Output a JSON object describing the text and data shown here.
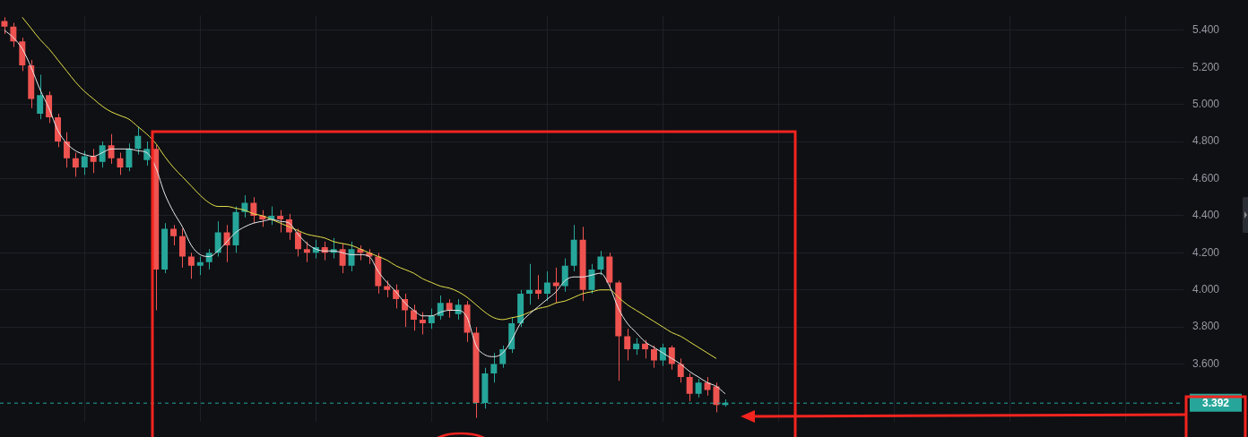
{
  "chart_data": {
    "type": "candlestick",
    "categories": [
      null,
      null,
      null,
      null,
      null,
      null,
      null,
      null,
      null,
      null,
      null,
      null,
      null,
      null,
      null,
      null,
      null,
      null,
      null,
      null,
      null,
      null,
      null,
      null,
      null,
      null,
      null,
      null,
      null,
      null,
      null,
      null,
      null,
      null,
      null,
      null,
      null,
      null,
      null,
      null,
      null,
      null,
      null,
      null,
      null,
      null,
      null,
      null,
      null,
      null,
      null,
      null,
      null,
      null,
      null,
      null,
      null,
      null,
      null,
      null,
      null,
      null,
      null,
      null,
      null,
      null,
      null,
      null,
      null,
      null,
      null,
      null,
      null,
      null,
      null,
      null,
      null,
      null,
      null,
      null,
      null,
      null,
      null,
      null,
      null,
      null,
      null,
      null,
      null,
      null,
      null,
      null,
      null,
      null,
      null,
      null,
      null,
      null,
      null,
      null,
      null,
      null,
      null,
      null,
      null,
      null,
      null,
      null,
      null,
      null,
      null,
      null,
      null,
      null,
      null,
      null,
      null,
      null,
      null,
      null,
      null,
      null,
      null,
      null,
      null,
      null,
      null,
      null,
      null,
      null,
      null,
      null,
      null
    ],
    "ohlc": [
      [
        5.45,
        5.47,
        5.38,
        5.42
      ],
      [
        5.42,
        5.44,
        5.31,
        5.34
      ],
      [
        5.34,
        5.36,
        5.18,
        5.21
      ],
      [
        5.21,
        5.24,
        4.98,
        5.03
      ],
      [
        4.95,
        5.16,
        4.92,
        5.05
      ],
      [
        5.05,
        5.07,
        4.9,
        4.93
      ],
      [
        4.93,
        4.95,
        4.77,
        4.8
      ],
      [
        4.8,
        4.85,
        4.66,
        4.71
      ],
      [
        4.71,
        4.74,
        4.61,
        4.66
      ],
      [
        4.66,
        4.75,
        4.62,
        4.72
      ],
      [
        4.72,
        4.76,
        4.63,
        4.69
      ],
      [
        4.69,
        4.8,
        4.66,
        4.78
      ],
      [
        4.78,
        4.84,
        4.68,
        4.71
      ],
      [
        4.71,
        4.74,
        4.62,
        4.66
      ],
      [
        4.66,
        4.79,
        4.64,
        4.76
      ],
      [
        4.76,
        4.88,
        4.73,
        4.83
      ],
      [
        4.7,
        4.8,
        4.67,
        4.76
      ],
      [
        4.76,
        4.78,
        3.89,
        4.11
      ],
      [
        4.11,
        4.36,
        4.09,
        4.33
      ],
      [
        4.33,
        4.35,
        4.24,
        4.29
      ],
      [
        4.29,
        4.33,
        4.12,
        4.18
      ],
      [
        4.18,
        4.2,
        4.06,
        4.13
      ],
      [
        4.13,
        4.18,
        4.08,
        4.15
      ],
      [
        4.15,
        4.22,
        4.11,
        4.2
      ],
      [
        4.2,
        4.37,
        4.18,
        4.31
      ],
      [
        4.31,
        4.35,
        4.15,
        4.24
      ],
      [
        4.24,
        4.45,
        4.2,
        4.42
      ],
      [
        4.42,
        4.51,
        4.39,
        4.47
      ],
      [
        4.47,
        4.5,
        4.36,
        4.4
      ],
      [
        4.4,
        4.43,
        4.34,
        4.38
      ],
      [
        4.38,
        4.45,
        4.35,
        4.4
      ],
      [
        4.4,
        4.43,
        4.31,
        4.38
      ],
      [
        4.38,
        4.41,
        4.27,
        4.31
      ],
      [
        4.31,
        4.33,
        4.18,
        4.22
      ],
      [
        4.22,
        4.26,
        4.15,
        4.2
      ],
      [
        4.2,
        4.27,
        4.17,
        4.23
      ],
      [
        4.23,
        4.26,
        4.16,
        4.2
      ],
      [
        4.2,
        4.28,
        4.17,
        4.22
      ],
      [
        4.22,
        4.25,
        4.09,
        4.13
      ],
      [
        4.13,
        4.26,
        4.1,
        4.22
      ],
      [
        4.22,
        4.24,
        4.16,
        4.2
      ],
      [
        4.2,
        4.22,
        4.14,
        4.18
      ],
      [
        4.18,
        4.2,
        3.98,
        4.02
      ],
      [
        4.02,
        4.05,
        3.96,
        4.0
      ],
      [
        4.0,
        4.03,
        3.9,
        3.95
      ],
      [
        3.95,
        3.98,
        3.8,
        3.89
      ],
      [
        3.89,
        3.92,
        3.78,
        3.84
      ],
      [
        3.84,
        3.88,
        3.76,
        3.82
      ],
      [
        3.82,
        3.9,
        3.79,
        3.86
      ],
      [
        3.86,
        3.97,
        3.84,
        3.93
      ],
      [
        3.93,
        3.95,
        3.85,
        3.89
      ],
      [
        3.87,
        3.95,
        3.84,
        3.92
      ],
      [
        3.92,
        3.94,
        3.72,
        3.77
      ],
      [
        3.77,
        3.8,
        3.31,
        3.39
      ],
      [
        3.39,
        3.58,
        3.36,
        3.55
      ],
      [
        3.55,
        3.66,
        3.5,
        3.6
      ],
      [
        3.6,
        3.7,
        3.58,
        3.68
      ],
      [
        3.68,
        3.85,
        3.66,
        3.82
      ],
      [
        3.82,
        4.0,
        3.8,
        3.98
      ],
      [
        3.98,
        4.14,
        3.92,
        4.0
      ],
      [
        4.0,
        4.08,
        3.95,
        3.98
      ],
      [
        3.98,
        4.1,
        3.94,
        4.04
      ],
      [
        4.04,
        4.12,
        3.93,
        4.02
      ],
      [
        4.02,
        4.17,
        3.99,
        4.13
      ],
      [
        4.13,
        4.35,
        4.1,
        4.27
      ],
      [
        4.27,
        4.34,
        3.94,
        4.0
      ],
      [
        4.0,
        4.14,
        3.98,
        4.11
      ],
      [
        4.11,
        4.21,
        4.08,
        4.18
      ],
      [
        4.18,
        4.2,
        4.01,
        4.04
      ],
      [
        4.04,
        4.05,
        3.51,
        3.75
      ],
      [
        3.75,
        3.79,
        3.62,
        3.68
      ],
      [
        3.68,
        3.74,
        3.65,
        3.71
      ],
      [
        3.71,
        3.73,
        3.63,
        3.68
      ],
      [
        3.68,
        3.7,
        3.58,
        3.62
      ],
      [
        3.62,
        3.71,
        3.59,
        3.69
      ],
      [
        3.69,
        3.7,
        3.57,
        3.6
      ],
      [
        3.6,
        3.63,
        3.5,
        3.53
      ],
      [
        3.53,
        3.55,
        3.4,
        3.44
      ],
      [
        3.44,
        3.52,
        3.42,
        3.5
      ],
      [
        3.5,
        3.53,
        3.43,
        3.46
      ],
      [
        3.48,
        3.5,
        3.34,
        3.38
      ],
      [
        3.38,
        3.41,
        3.37,
        3.392
      ],
      null,
      null,
      null,
      null,
      null,
      null,
      null,
      null,
      null,
      null,
      null,
      null,
      null,
      null,
      null,
      null,
      null,
      null,
      null,
      null,
      null,
      null,
      null,
      null,
      null,
      null,
      null,
      null,
      null,
      null,
      null,
      null,
      null,
      null,
      null,
      null,
      null,
      null,
      null,
      null,
      null,
      null,
      null,
      null,
      null,
      null,
      null,
      null,
      null,
      null,
      null
    ],
    "series": [
      {
        "type": "line",
        "color": "#e8e8e8",
        "values": [
          5.4,
          5.36,
          5.3,
          5.2,
          5.08,
          4.98,
          4.86,
          4.79,
          4.75,
          4.73,
          4.72,
          4.74,
          4.76,
          4.76,
          4.76,
          4.75,
          4.74,
          4.66,
          4.52,
          4.42,
          4.34,
          4.24,
          4.19,
          4.18,
          4.21,
          4.26,
          4.31,
          4.34,
          4.36,
          4.37,
          4.38,
          4.37,
          4.36,
          4.3,
          4.25,
          4.22,
          4.21,
          4.21,
          4.2,
          4.19,
          4.19,
          4.18,
          4.1,
          4.04,
          3.99,
          3.93,
          3.89,
          3.86,
          3.86,
          3.88,
          3.89,
          3.89,
          3.85,
          3.7,
          3.65,
          3.64,
          3.66,
          3.73,
          3.82,
          3.87,
          3.91,
          3.95,
          3.99,
          4.05,
          4.07,
          4.07,
          4.08,
          4.09,
          4.02,
          3.9,
          3.82,
          3.77,
          3.72,
          3.69,
          3.66,
          3.63,
          3.6,
          3.56,
          3.53,
          3.5,
          3.48,
          3.44,
          null,
          null,
          null,
          null,
          null,
          null,
          null,
          null,
          null,
          null,
          null,
          null,
          null,
          null,
          null,
          null,
          null,
          null,
          null,
          null,
          null,
          null,
          null,
          null,
          null,
          null,
          null,
          null,
          null,
          null,
          null,
          null,
          null,
          null,
          null,
          null,
          null,
          null,
          null,
          null,
          null,
          null,
          null,
          null,
          null,
          null,
          null,
          null,
          null,
          null,
          null
        ]
      },
      {
        "type": "line",
        "color": "#e6e14a",
        "values": [
          null,
          null,
          5.47,
          5.41,
          5.35,
          5.3,
          5.24,
          5.18,
          5.12,
          5.07,
          5.03,
          4.99,
          4.96,
          4.94,
          4.92,
          4.88,
          4.84,
          4.79,
          4.72,
          4.66,
          4.61,
          4.56,
          4.51,
          4.47,
          4.45,
          4.45,
          4.44,
          4.43,
          4.41,
          4.4,
          4.38,
          4.36,
          4.34,
          4.32,
          4.3,
          4.29,
          4.28,
          4.26,
          4.25,
          4.24,
          4.22,
          4.2,
          4.18,
          4.16,
          4.13,
          4.11,
          4.09,
          4.06,
          4.04,
          4.02,
          4.01,
          3.99,
          3.96,
          3.92,
          3.88,
          3.85,
          3.84,
          3.85,
          3.86,
          3.88,
          3.9,
          3.91,
          3.93,
          3.94,
          3.96,
          3.98,
          3.99,
          4.0,
          4.0,
          3.96,
          3.92,
          3.89,
          3.86,
          3.83,
          3.8,
          3.77,
          3.75,
          3.72,
          3.69,
          3.66,
          3.63,
          null,
          null,
          null,
          null,
          null,
          null,
          null,
          null,
          null,
          null,
          null,
          null,
          null,
          null,
          null,
          null,
          null,
          null,
          null,
          null,
          null,
          null,
          null,
          null,
          null,
          null,
          null,
          null,
          null,
          null,
          null,
          null,
          null,
          null,
          null,
          null,
          null,
          null,
          null,
          null,
          null,
          null,
          null,
          null,
          null,
          null,
          null,
          null,
          null,
          null,
          null,
          null
        ]
      }
    ],
    "ylim": [
      3.29,
      5.48
    ],
    "yticks": [
      {
        "value": 3.6,
        "label": "3.600"
      },
      {
        "value": 3.8,
        "label": "3.800"
      },
      {
        "value": 4.0,
        "label": "4.000"
      },
      {
        "value": 4.2,
        "label": "4.200"
      },
      {
        "value": 4.4,
        "label": "4.400"
      },
      {
        "value": 4.6,
        "label": "4.600"
      },
      {
        "value": 4.8,
        "label": "4.800"
      },
      {
        "value": 5.0,
        "label": "5.000"
      },
      {
        "value": 5.2,
        "label": "5.200"
      },
      {
        "value": 5.4,
        "label": "5.400"
      }
    ],
    "grid": true,
    "tick_labels": "y",
    "ref_lines": [
      {
        "axis": "y",
        "value": 3.392,
        "label": "3.392",
        "color": "#26a69a",
        "line_style": "dashed"
      }
    ]
  }
}
